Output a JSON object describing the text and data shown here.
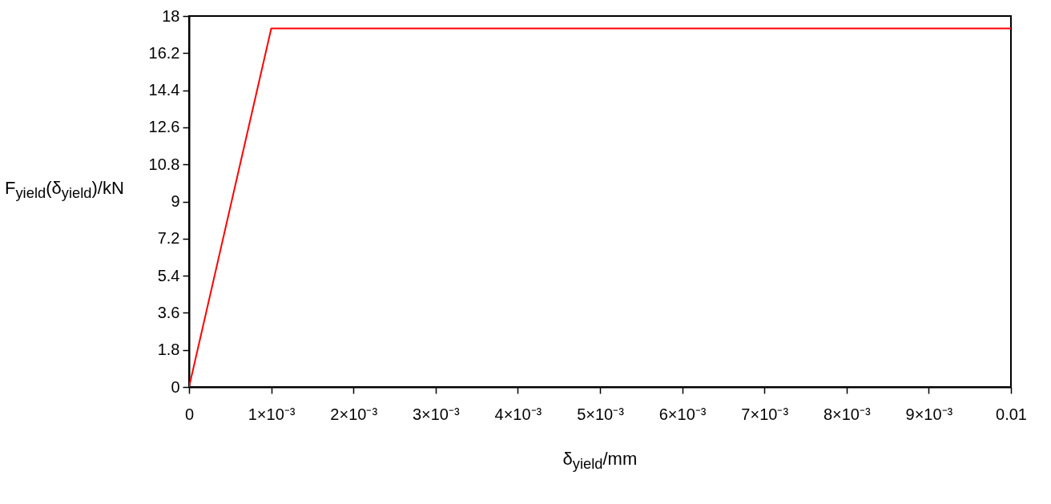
{
  "chart_data": {
    "type": "line",
    "xlabel": "δ$_{yield}$/mm",
    "ylabel": "F$_{yield}$(δ$_{yield}$)/kN",
    "x": [
      0,
      0.001,
      0.01
    ],
    "series": [
      {
        "color": "#ff0000",
        "values": [
          0,
          17.4,
          17.4
        ]
      }
    ],
    "xlim": [
      0,
      0.01
    ],
    "xticks": [
      0,
      {
        "value": 0.001,
        "label": "1×10⁻³"
      },
      {
        "value": 0.002,
        "label": "2×10⁻³"
      },
      {
        "value": 0.003,
        "label": "3×10⁻³"
      },
      {
        "value": 0.004,
        "label": "4×10⁻³"
      },
      {
        "value": 0.005,
        "label": "5×10⁻³"
      },
      {
        "value": 0.006,
        "label": "6×10⁻³"
      },
      {
        "value": 0.007,
        "label": "7×10⁻³"
      },
      {
        "value": 0.008,
        "label": "8×10⁻³"
      },
      {
        "value": 0.009,
        "label": "9×10⁻³"
      },
      0.01
    ],
    "ylim": [
      0,
      18
    ],
    "yticks": [
      0,
      1.8,
      3.6,
      5.4,
      7.2,
      9,
      10.8,
      12.6,
      14.4,
      16.2,
      18
    ],
    "grid": false
  }
}
